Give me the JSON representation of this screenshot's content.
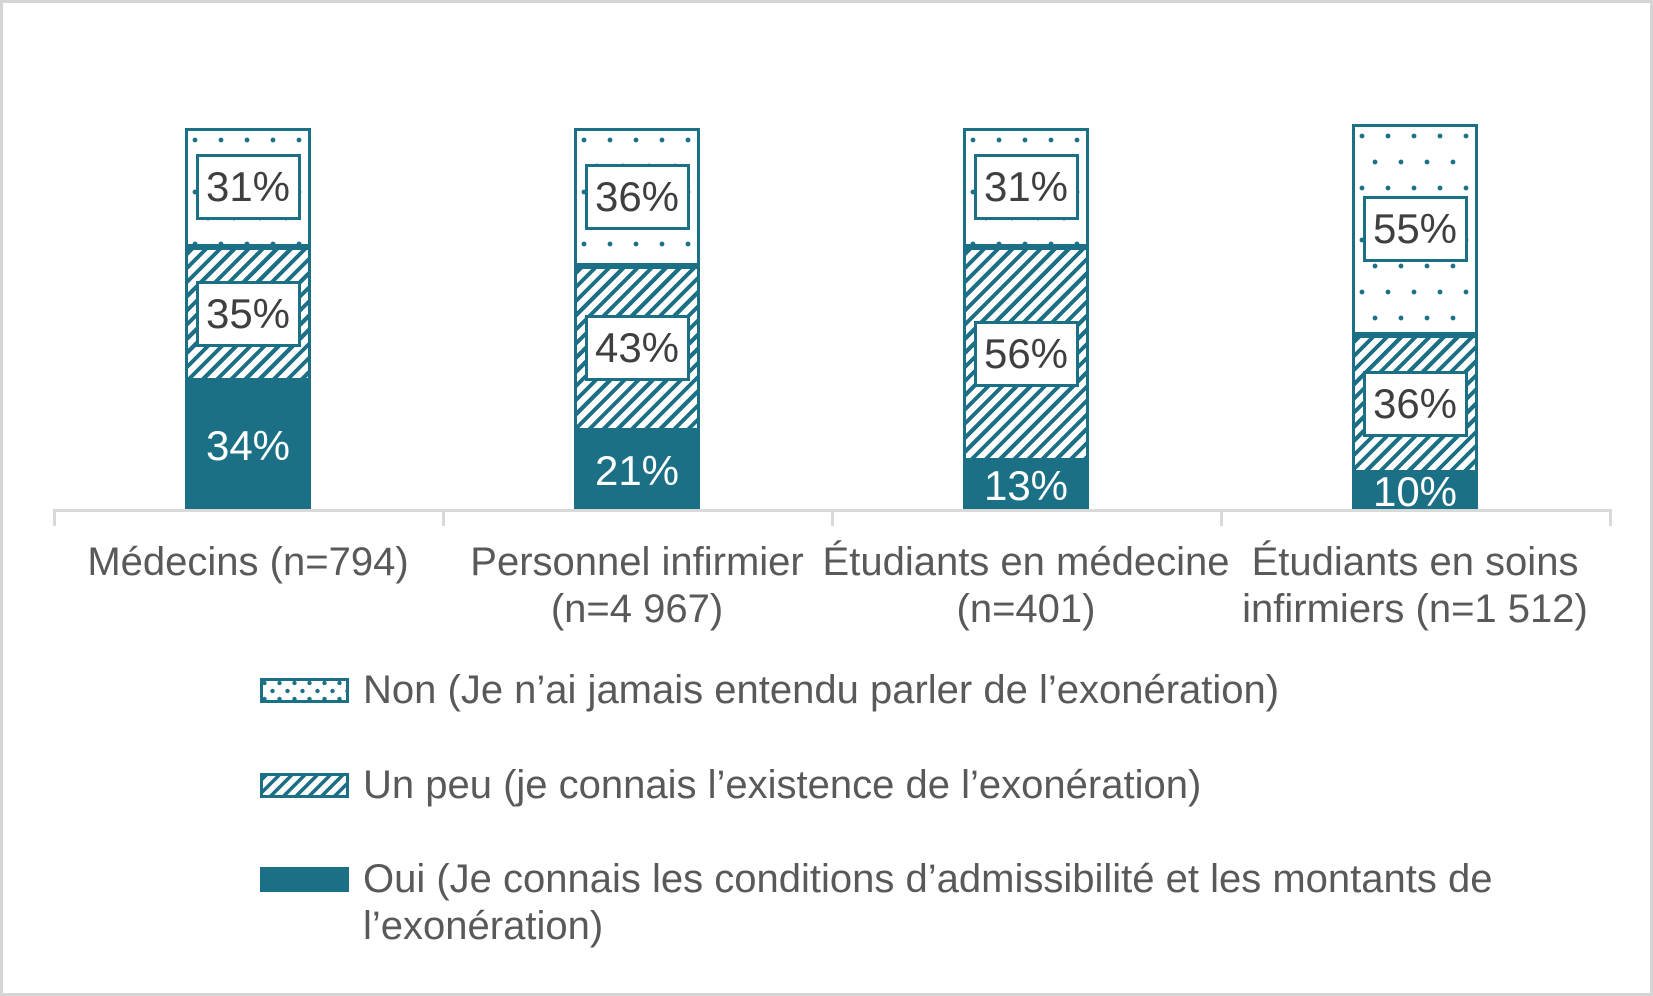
{
  "chart_data": {
    "type": "bar",
    "stacked": true,
    "orientation": "vertical",
    "unit": "%",
    "title": "",
    "xlabel": "",
    "ylabel": "",
    "ylim": [
      0,
      100
    ],
    "gridlines": false,
    "legend_position": "bottom-left",
    "stack_order_note": "series[0] is the TOP segment of each bar, series[2] is the bottom",
    "categories": [
      "Médecins (n=794)",
      "Personnel infirmier (n=4 967)",
      "Étudiants en médecine (n=401)",
      "Étudiants en soins infirmiers (n=1 512)"
    ],
    "series": [
      {
        "name": "Non (Je n’ai jamais entendu parler de l’exonération)",
        "pattern": "dots",
        "label_style": "boxed",
        "values": [
          31,
          36,
          31,
          55
        ]
      },
      {
        "name": "Un peu (je connais l’existence de l’exonération)",
        "pattern": "hatch",
        "label_style": "boxed",
        "values": [
          35,
          43,
          56,
          36
        ]
      },
      {
        "name": "Oui (Je connais les conditions d’admissibilité et les montants de l’exonération)",
        "pattern": "solid",
        "label_style": "plain-white",
        "values": [
          34,
          21,
          13,
          10
        ]
      }
    ],
    "colors": {
      "accent": "#1b7086",
      "label_text": "#3f3f3f",
      "axis_text": "#595959",
      "axis_line": "#d9d9d9",
      "background": "#ffffff",
      "frame_border": "#d5d5d5"
    }
  }
}
